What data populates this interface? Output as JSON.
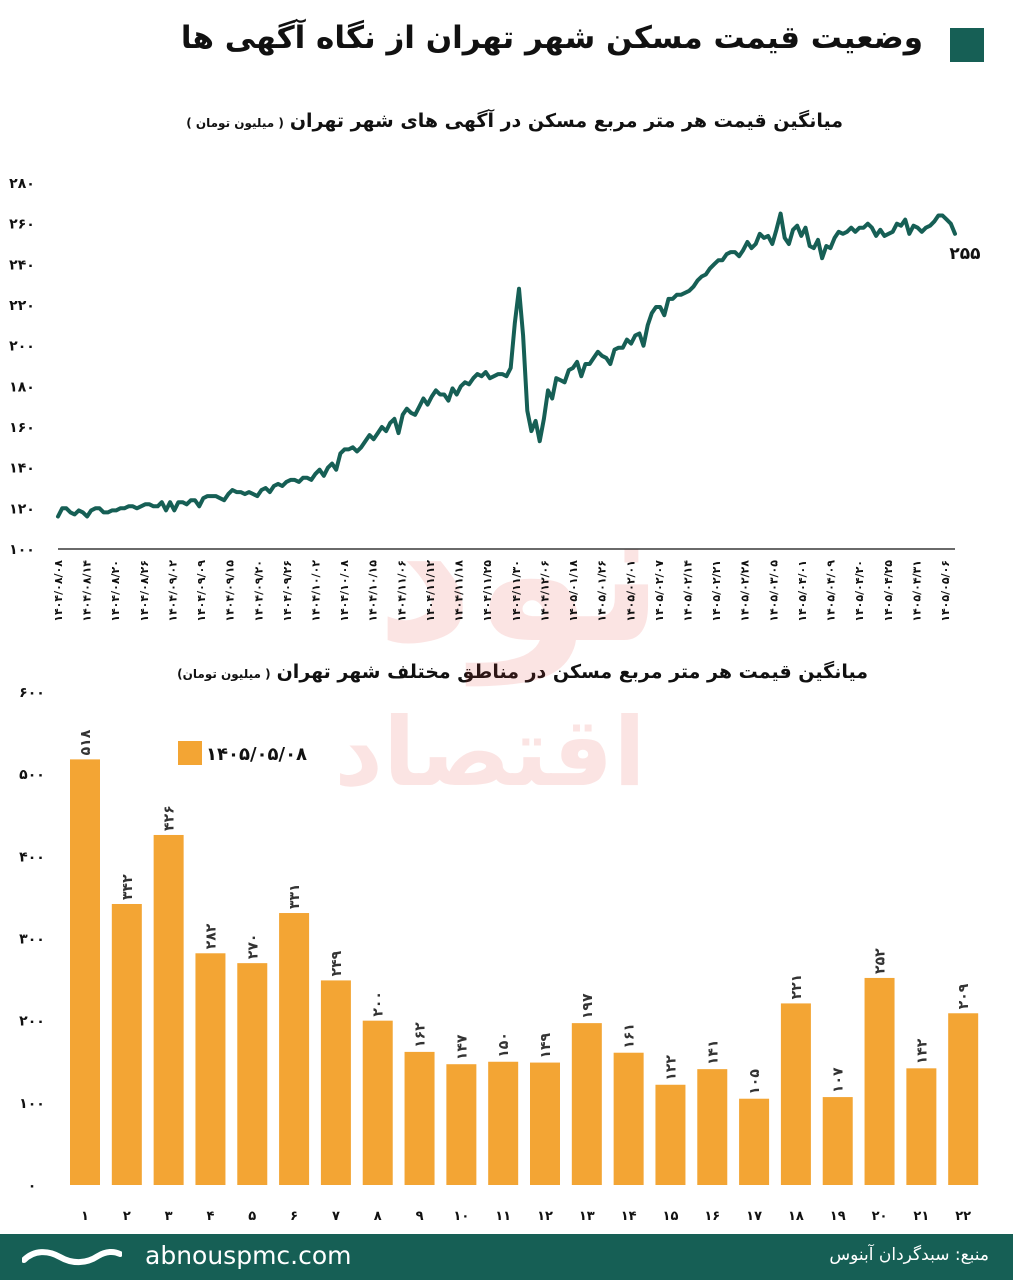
{
  "header": {
    "title": "وضعیت قیمت مسکن شهر تهران از نگاه آگهی ها",
    "accent_color": "#165f55"
  },
  "line_chart": {
    "title": "میانگین قیمت هر متر مربع مسکن در آگهی های  شهر تهران",
    "unit": "( میلیون تومان )",
    "end_label": "۲۵۵",
    "color": "#165f55"
  },
  "bar_chart": {
    "title": "میانگین قیمت هر متر مربع مسکن در مناطق مختلف شهر تهران",
    "unit": "( میلیون تومان)",
    "legend_label": "۱۴۰۵/۰۵/۰۸",
    "color": "#f3a534"
  },
  "footer": {
    "website": "abnouspmc.com",
    "source": "منبع: سبدگردان آبنوس",
    "background": "#165f55",
    "logo_icon": "wave-logo-icon"
  },
  "watermark": {
    "text_top": "نود",
    "text_bottom": "اقتصاد"
  },
  "chart_data": [
    {
      "type": "line",
      "title": "میانگین قیمت هر متر مربع مسکن در آگهی های  شهر تهران",
      "ylabel": "( میلیون تومان )",
      "ylim": [
        100,
        280
      ],
      "yticks": [
        100,
        120,
        140,
        160,
        180,
        200,
        220,
        240,
        260,
        280
      ],
      "ytick_labels": [
        "۱۰۰",
        "۱۲۰",
        "۱۴۰",
        "۱۶۰",
        "۱۸۰",
        "۲۰۰",
        "۲۲۰",
        "۲۴۰",
        "۲۶۰",
        "۲۸۰"
      ],
      "x_ticks": [
        "۱۴۰۴/۰۸/۰۸",
        "۱۴۰۴/۰۸/۱۴",
        "۱۴۰۴/۰۸/۲۰",
        "۱۴۰۴/۰۸/۲۶",
        "۱۴۰۴/۰۹/۰۲",
        "۱۴۰۴/۰۹/۰۹",
        "۱۴۰۴/۰۹/۱۵",
        "۱۴۰۴/۰۹/۲۰",
        "۱۴۰۴/۰۹/۲۶",
        "۱۴۰۴/۱۰/۰۲",
        "۱۴۰۴/۱۰/۰۸",
        "۱۴۰۴/۱۰/۱۵",
        "۱۴۰۴/۱۱/۰۶",
        "۱۴۰۴/۱۱/۱۲",
        "۱۴۰۴/۱۱/۱۸",
        "۱۴۰۴/۱۱/۲۵",
        "۱۴۰۴/۱۱/۳۰",
        "۱۴۰۴/۱۲/۰۶",
        "۱۴۰۵/۰۱/۱۸",
        "۱۴۰۵/۰۱/۲۶",
        "۱۴۰۵/۰۲/۰۱",
        "۱۴۰۵/۰۲/۰۷",
        "۱۴۰۵/۰۲/۱۴",
        "۱۴۰۵/۰۲/۲۱",
        "۱۴۰۵/۰۲/۲۸",
        "۱۴۰۵/۰۳/۰۵",
        "۱۴۰۵/۰۴/۰۱",
        "۱۴۰۵/۰۴/۰۹",
        "۱۴۰۵/۰۴/۲۰",
        "۱۴۰۵/۰۴/۲۵",
        "۱۴۰۵/۰۴/۳۱",
        "۱۴۰۵/۰۵/۰۶"
      ],
      "series": [
        {
          "values": [
            116,
            120,
            120,
            118,
            117,
            119,
            118,
            116,
            119,
            120,
            120,
            118,
            118,
            119,
            119,
            120,
            120,
            121,
            121,
            120,
            121,
            122,
            122,
            121,
            121,
            123,
            119,
            123,
            119,
            123,
            123,
            122,
            124,
            124,
            121,
            125,
            126,
            126,
            126,
            125,
            124,
            127,
            129,
            128,
            128,
            127,
            128,
            127,
            126,
            129,
            130,
            128,
            131,
            132,
            131,
            133,
            134,
            134,
            133,
            135,
            135,
            134,
            137,
            139,
            136,
            140,
            142,
            139,
            147,
            149,
            149,
            150,
            148,
            150,
            153,
            156,
            154,
            157,
            160,
            158,
            162,
            164,
            157,
            166,
            169,
            167,
            166,
            170,
            174,
            171,
            175,
            178,
            176,
            176,
            173,
            179,
            176,
            180,
            182,
            181,
            184,
            186,
            185,
            187,
            184,
            185,
            186,
            186,
            185,
            189,
            211,
            228,
            205,
            168,
            158,
            163,
            153,
            164,
            178,
            174,
            184,
            183,
            182,
            188,
            189,
            192,
            185,
            191,
            191,
            194,
            197,
            195,
            194,
            191,
            198,
            199,
            199,
            203,
            201,
            205,
            206,
            200,
            210,
            216,
            219,
            219,
            215,
            223,
            223,
            225,
            225,
            226,
            227,
            229,
            232,
            234,
            235,
            238,
            240,
            242,
            242,
            245,
            246,
            246,
            244,
            247,
            251,
            248,
            250,
            255,
            253,
            254,
            250,
            257,
            265,
            253,
            250,
            257,
            259,
            254,
            258,
            249,
            248,
            252,
            243,
            249,
            248,
            253,
            256,
            255,
            256,
            258,
            256,
            258,
            258,
            260,
            258,
            254,
            257,
            254,
            255,
            256,
            260,
            259,
            262,
            255,
            259,
            258,
            256,
            258,
            259,
            261,
            264,
            264,
            262,
            260,
            255
          ]
        }
      ]
    },
    {
      "type": "bar",
      "title": "میانگین قیمت هر متر مربع مسکن در مناطق مختلف شهر تهران",
      "ylabel": "( میلیون تومان)",
      "ylim": [
        0,
        600
      ],
      "yticks": [
        0,
        100,
        200,
        300,
        400,
        500,
        600
      ],
      "ytick_labels": [
        "۰",
        "۱۰۰",
        "۲۰۰",
        "۳۰۰",
        "۴۰۰",
        "۵۰۰",
        "۶۰۰"
      ],
      "categories": [
        "۱",
        "۲",
        "۳",
        "۴",
        "۵",
        "۶",
        "۷",
        "۸",
        "۹",
        "۱۰",
        "۱۱",
        "۱۲",
        "۱۳",
        "۱۴",
        "۱۵",
        "۱۶",
        "۱۷",
        "۱۸",
        "۱۹",
        "۲۰",
        "۲۱",
        "۲۲"
      ],
      "series": [
        {
          "name": "۱۴۰۵/۰۵/۰۸",
          "values": [
            518,
            342,
            426,
            282,
            270,
            331,
            249,
            200,
            162,
            147,
            150,
            149,
            197,
            161,
            122,
            141,
            105,
            221,
            107,
            252,
            142,
            209
          ],
          "labels": [
            "۵۱۸",
            "۳۴۲",
            "۴۲۶",
            "۲۸۲",
            "۲۷۰",
            "۳۳۱",
            "۲۴۹",
            "۲۰۰",
            "۱۶۲",
            "۱۴۷",
            "۱۵۰",
            "۱۴۹",
            "۱۹۷",
            "۱۶۱",
            "۱۲۲",
            "۱۴۱",
            "۱۰۵",
            "۲۲۱",
            "۱۰۷",
            "۲۵۲",
            "۱۴۲",
            "۲۰۹"
          ]
        }
      ],
      "legend": "top-left"
    }
  ]
}
